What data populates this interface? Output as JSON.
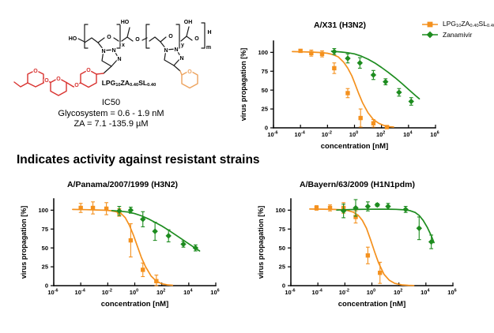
{
  "heading": "Indicates activity against resistant strains",
  "ic50": {
    "line1": "IC50",
    "line2": "Glycosystem  = 0.6 - 1.9 nM",
    "line3": "ZA =  7.1 -135.9 µM"
  },
  "structure": {
    "caption": [
      {
        "t": "LPG"
      },
      {
        "sub": "10"
      },
      {
        "t": "ZA"
      },
      {
        "sub": "0.40"
      },
      {
        "t": "SL"
      },
      {
        "sub": "0.40"
      }
    ],
    "colors": {
      "glycan_red": "#d9322f",
      "pyran_orange": "#eda35e",
      "bond_black": "#1a1a1a"
    },
    "atoms": {
      "ho_left": "HO",
      "ho_top": "HO",
      "oh_top": "OH",
      "h_end": "H",
      "x_sub": "x",
      "y_sub": "y",
      "m_sub": "m",
      "o_bb1": "O",
      "o_bb2": "O",
      "o_bb3": "O",
      "o_bb4": "O",
      "n1a": "N",
      "n1b": "N",
      "n1c": "N",
      "n2a": "N",
      "n2b": "N",
      "n2c": "N",
      "o_red1": "O",
      "o_red2": "O",
      "o_red3": "O",
      "o_red4": "O",
      "o_red5": "O",
      "o_pyran": "O"
    }
  },
  "legend": {
    "position": "outside-top-right-of-first-chart",
    "items": [
      {
        "label": [
          {
            "t": "LPG"
          },
          {
            "sub": "10"
          },
          {
            "t": "ZA"
          },
          {
            "sub": "0.40"
          },
          {
            "t": "SL"
          },
          {
            "sub": "0.40"
          }
        ],
        "color": "#f4911e",
        "marker": "square"
      },
      {
        "label": [
          {
            "t": "Zanamivir"
          }
        ],
        "color": "#1d8c1f",
        "marker": "diamond"
      }
    ]
  },
  "chart_data": [
    {
      "type": "line",
      "subtype": "dose-response",
      "title": "A/X31 (H3N2)",
      "xlabel": "concentration [nM]",
      "ylabel": "virus propagation [%]",
      "x_axis": {
        "scale": "log10",
        "min_exp": -6,
        "max_exp": 6,
        "tick_exps": [
          -6,
          -4,
          -2,
          0,
          2,
          4,
          6
        ]
      },
      "y_axis": {
        "min": 0,
        "max": 115,
        "ticks": [
          0,
          25,
          50,
          75,
          100
        ]
      },
      "grid": false,
      "series": [
        {
          "name": "LPG10ZA0.40SL0.40",
          "color": "#f4911e",
          "marker": "square",
          "points": [
            [
              -4,
              102,
              2
            ],
            [
              -3.2,
              99,
              4
            ],
            [
              -2.4,
              98,
              4
            ],
            [
              -1.5,
              79,
              7
            ],
            [
              -0.5,
              46,
              6
            ],
            [
              0.45,
              13,
              12
            ],
            [
              1.4,
              6,
              5
            ],
            [
              2.4,
              1,
              1.5
            ]
          ],
          "fit_curve": [
            [
              -4.6,
              101
            ],
            [
              -4,
              100.8
            ],
            [
              -3.2,
              100.4
            ],
            [
              -2.6,
              99.8
            ],
            [
              -2,
              98.8
            ],
            [
              -1.6,
              97
            ],
            [
              -1.2,
              94
            ],
            [
              -0.8,
              87
            ],
            [
              -0.5,
              79
            ],
            [
              -0.2,
              69
            ],
            [
              0,
              60
            ],
            [
              0.3,
              46
            ],
            [
              0.6,
              33
            ],
            [
              1,
              20
            ],
            [
              1.4,
              11
            ],
            [
              1.8,
              6
            ],
            [
              2.2,
              3
            ],
            [
              2.6,
              1.5
            ],
            [
              2.9,
              1
            ]
          ]
        },
        {
          "name": "Zanamivir",
          "color": "#1d8c1f",
          "marker": "diamond",
          "points": [
            [
              -1.5,
              101,
              4
            ],
            [
              -0.5,
              92,
              6
            ],
            [
              0.4,
              86,
              7
            ],
            [
              1.4,
              70,
              6
            ],
            [
              2.3,
              61,
              4
            ],
            [
              3.3,
              47,
              5
            ],
            [
              4.2,
              35,
              5
            ]
          ],
          "fit_curve": [
            [
              -1.7,
              101.5
            ],
            [
              -1,
              100.5
            ],
            [
              -0.5,
              99.5
            ],
            [
              0,
              98
            ],
            [
              0.5,
              95
            ],
            [
              1,
              91
            ],
            [
              1.5,
              86
            ],
            [
              2,
              80
            ],
            [
              2.5,
              73.5
            ],
            [
              3,
              66.5
            ],
            [
              3.5,
              59
            ],
            [
              4,
              51
            ],
            [
              4.5,
              43
            ],
            [
              4.8,
              38.5
            ]
          ]
        }
      ]
    },
    {
      "type": "line",
      "subtype": "dose-response",
      "title": "A/Panama/2007/1999 (H3N2)",
      "xlabel": "concentration [nM]",
      "ylabel": "virus propagation [%]",
      "x_axis": {
        "scale": "log10",
        "min_exp": -6,
        "max_exp": 6,
        "tick_exps": [
          -6,
          -4,
          -2,
          0,
          2,
          4,
          6
        ]
      },
      "y_axis": {
        "min": 0,
        "max": 115,
        "ticks": [
          0,
          25,
          50,
          75,
          100
        ]
      },
      "grid": false,
      "series": [
        {
          "name": "LPG10ZA0.40SL0.40",
          "color": "#f4911e",
          "marker": "square",
          "points": [
            [
              -4,
              103,
              6
            ],
            [
              -3.1,
              103,
              8
            ],
            [
              -2.1,
              102,
              8
            ],
            [
              -1.15,
              97,
              5
            ],
            [
              -0.3,
              60,
              22
            ],
            [
              0.6,
              21,
              9
            ],
            [
              1.6,
              6,
              8
            ]
          ],
          "fit_curve": [
            [
              -4.6,
              101
            ],
            [
              -3.6,
              100.7
            ],
            [
              -2.8,
              100.3
            ],
            [
              -2.2,
              99.9
            ],
            [
              -1.8,
              99.3
            ],
            [
              -1.4,
              98
            ],
            [
              -1,
              95.5
            ],
            [
              -0.7,
              90
            ],
            [
              -0.4,
              80
            ],
            [
              -0.1,
              67
            ],
            [
              0.2,
              52
            ],
            [
              0.5,
              37
            ],
            [
              0.8,
              25
            ],
            [
              1.2,
              13
            ],
            [
              1.6,
              6
            ],
            [
              2,
              2.5
            ],
            [
              2.4,
              1
            ],
            [
              2.8,
              0.5
            ]
          ]
        },
        {
          "name": "Zanamivir",
          "color": "#1d8c1f",
          "marker": "diamond",
          "points": [
            [
              -1.15,
              99,
              6
            ],
            [
              -0.3,
              100,
              4
            ],
            [
              0.6,
              88,
              10
            ],
            [
              1.5,
              72,
              12
            ],
            [
              2.5,
              66,
              8
            ],
            [
              3.6,
              55,
              4
            ],
            [
              4.5,
              50,
              4
            ]
          ],
          "fit_curve": [
            [
              -1.7,
              99.5
            ],
            [
              -1,
              98.5
            ],
            [
              -0.5,
              97.5
            ],
            [
              0,
              95.5
            ],
            [
              0.5,
              92.5
            ],
            [
              1,
              88.5
            ],
            [
              1.5,
              84
            ],
            [
              2,
              79
            ],
            [
              2.5,
              73.5
            ],
            [
              3,
              67.5
            ],
            [
              3.5,
              61.5
            ],
            [
              4,
              55.5
            ],
            [
              4.5,
              49.5
            ],
            [
              4.8,
              46
            ]
          ]
        }
      ]
    },
    {
      "type": "line",
      "subtype": "dose-response",
      "title": "A/Bayern/63/2009 (H1N1pdm)",
      "xlabel": "concentration [nM]",
      "ylabel": "virus propagation [%]",
      "x_axis": {
        "scale": "log10",
        "min_exp": -6,
        "max_exp": 6,
        "tick_exps": [
          -6,
          -4,
          -2,
          0,
          2,
          4,
          6
        ]
      },
      "y_axis": {
        "min": 0,
        "max": 115,
        "ticks": [
          0,
          25,
          50,
          75,
          100
        ]
      },
      "grid": false,
      "series": [
        {
          "name": "LPG10ZA0.40SL0.40",
          "color": "#f4911e",
          "marker": "square",
          "points": [
            [
              -4.1,
              103,
              3
            ],
            [
              -3.1,
              103,
              4
            ],
            [
              -2.1,
              103,
              7
            ],
            [
              -1.2,
              91,
              8
            ],
            [
              -0.3,
              40,
              11
            ],
            [
              0.6,
              17,
              14
            ]
          ],
          "fit_curve": [
            [
              -4.6,
              101.5
            ],
            [
              -3.6,
              101.3
            ],
            [
              -2.8,
              101
            ],
            [
              -2.2,
              100.5
            ],
            [
              -1.8,
              99.5
            ],
            [
              -1.4,
              97.5
            ],
            [
              -1,
              93
            ],
            [
              -0.7,
              86.5
            ],
            [
              -0.4,
              76
            ],
            [
              -0.1,
              61
            ],
            [
              0.2,
              45
            ],
            [
              0.5,
              30
            ],
            [
              0.9,
              15
            ],
            [
              1.3,
              7
            ],
            [
              1.7,
              3
            ],
            [
              2.2,
              1
            ],
            [
              2.7,
              0.4
            ],
            [
              3.1,
              0.2
            ]
          ]
        },
        {
          "name": "Zanamivir",
          "color": "#1d8c1f",
          "marker": "diamond",
          "points": [
            [
              -2.1,
              99,
              9
            ],
            [
              -1.2,
              103,
              11
            ],
            [
              -0.3,
              105,
              6
            ],
            [
              0.4,
              107,
              2
            ],
            [
              1.2,
              105,
              4
            ],
            [
              2.5,
              101,
              4
            ],
            [
              3.5,
              76,
              15
            ],
            [
              4.4,
              58,
              9
            ]
          ],
          "fit_curve": [
            [
              -2.6,
              100.2
            ],
            [
              -2,
              100.6
            ],
            [
              -1.2,
              101
            ],
            [
              -0.4,
              101.2
            ],
            [
              0.4,
              101.3
            ],
            [
              1.2,
              101.3
            ],
            [
              1.8,
              101.1
            ],
            [
              2.4,
              100.5
            ],
            [
              2.8,
              99.5
            ],
            [
              3.2,
              97
            ],
            [
              3.5,
              93
            ],
            [
              3.8,
              86.5
            ],
            [
              4.1,
              77.5
            ],
            [
              4.4,
              66
            ],
            [
              4.6,
              57
            ]
          ]
        }
      ]
    }
  ]
}
